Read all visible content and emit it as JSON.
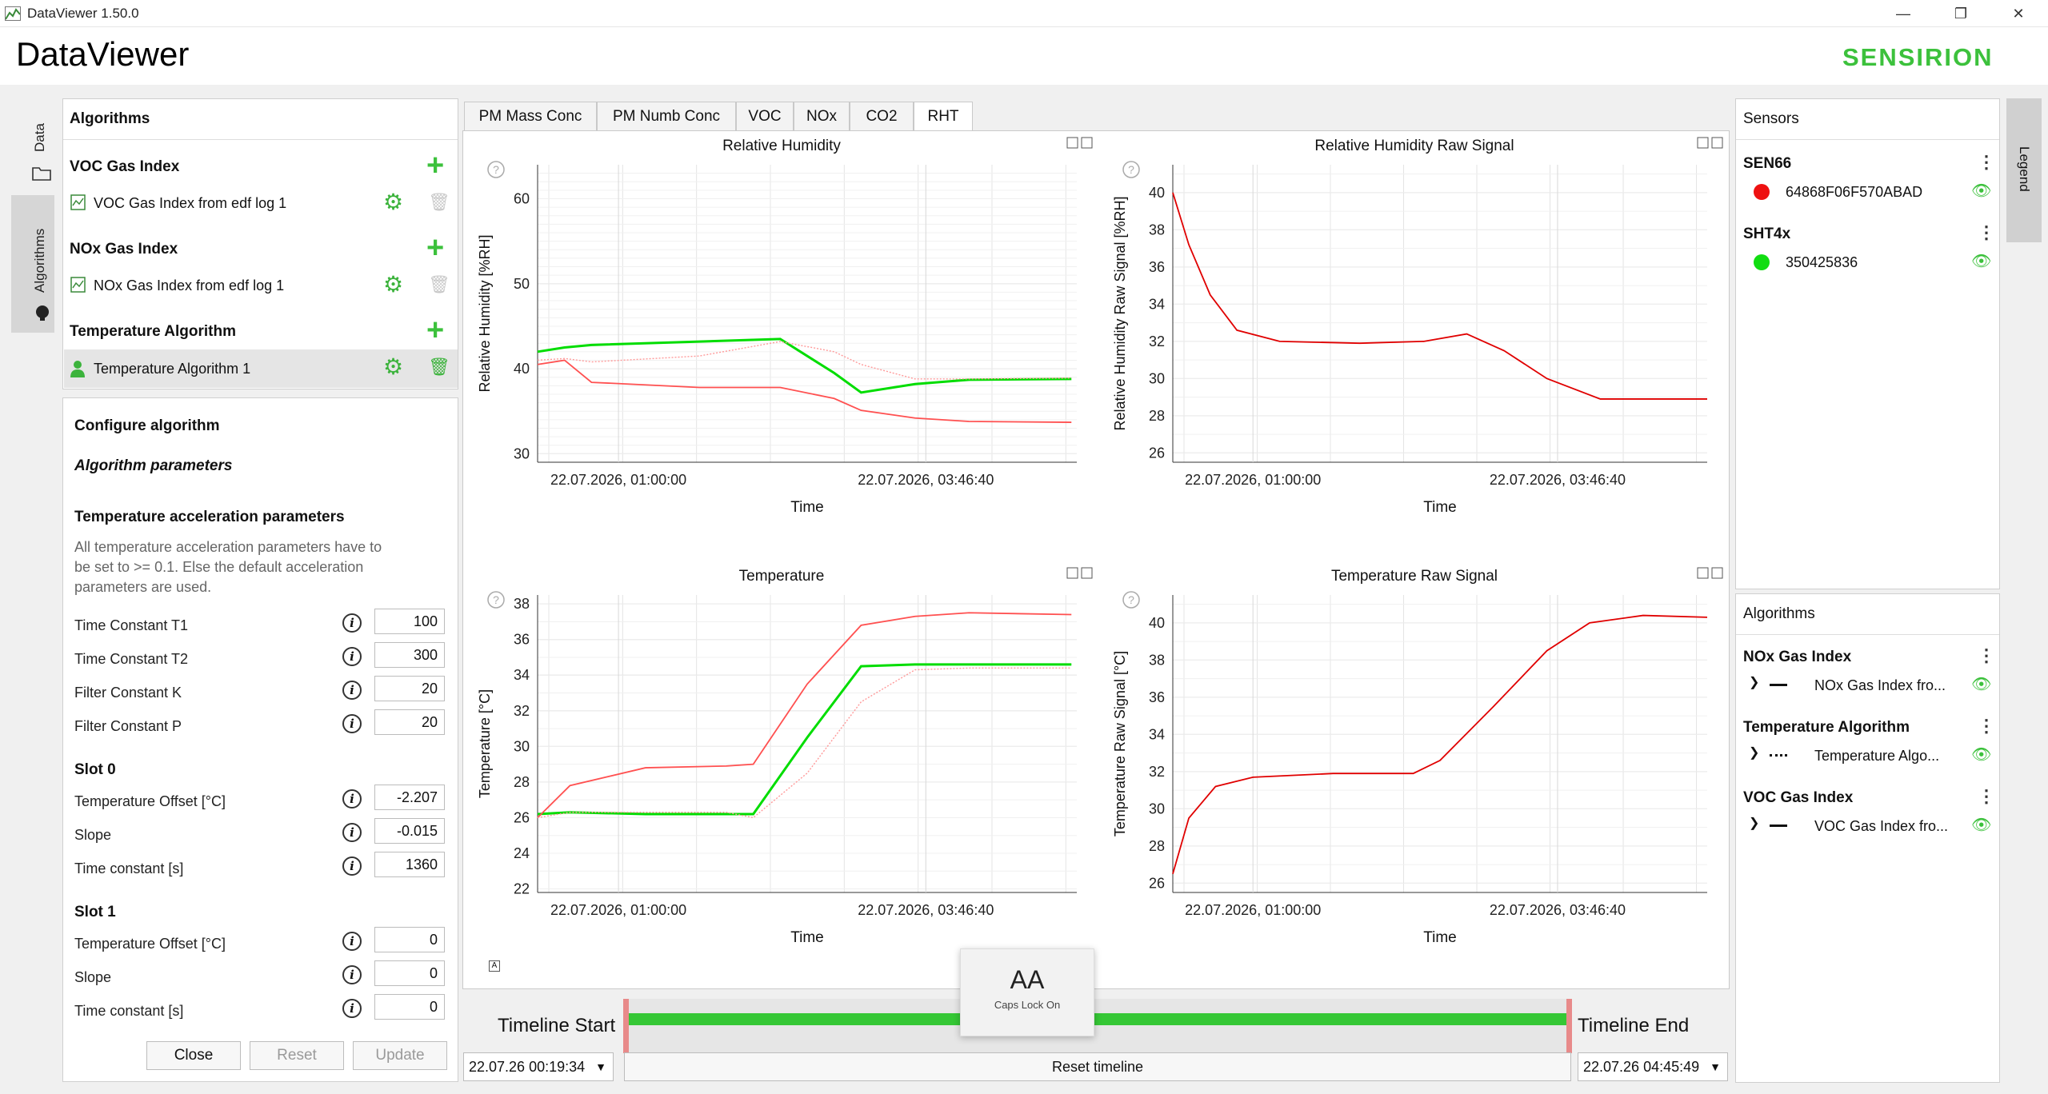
{
  "window": {
    "title": "DataViewer 1.50.0",
    "app_title": "DataViewer",
    "brand": "SENSIRION"
  },
  "rail": {
    "data_tab": "Data",
    "algorithms_tab": "Algorithms",
    "legend_tab": "Legend"
  },
  "algorithms_panel": {
    "header": "Algorithms",
    "groups": [
      {
        "name": "VOC Gas Index",
        "item": "VOC Gas Index from edf log 1"
      },
      {
        "name": "NOx Gas Index",
        "item": "NOx Gas Index from edf log 1"
      },
      {
        "name": "Temperature Algorithm",
        "item": "Temperature Algorithm 1"
      }
    ]
  },
  "configure": {
    "title": "Configure algorithm",
    "subtitle": "Algorithm parameters",
    "accel_header": "Temperature acceleration parameters",
    "accel_note_1": "All temperature acceleration parameters have to",
    "accel_note_2": "be set to >= 0.1. Else the default acceleration",
    "accel_note_3": "parameters are used.",
    "params": [
      {
        "label": "Time Constant T1",
        "value": "100"
      },
      {
        "label": "Time Constant T2",
        "value": "300"
      },
      {
        "label": "Filter Constant K",
        "value": "20"
      },
      {
        "label": "Filter Constant P",
        "value": "20"
      }
    ],
    "slot0_header": "Slot 0",
    "slot0": [
      {
        "label": "Temperature Offset [°C]",
        "value": "-2.207"
      },
      {
        "label": "Slope",
        "value": "-0.015"
      },
      {
        "label": "Time constant [s]",
        "value": "1360"
      }
    ],
    "slot1_header": "Slot 1",
    "slot1": [
      {
        "label": "Temperature Offset [°C]",
        "value": "0"
      },
      {
        "label": "Slope",
        "value": "0"
      },
      {
        "label": "Time constant [s]",
        "value": "0"
      }
    ],
    "buttons": {
      "close": "Close",
      "reset": "Reset",
      "update": "Update"
    }
  },
  "tabs": [
    "PM Mass Conc",
    "PM Numb Conc",
    "VOC",
    "NOx",
    "CO2",
    "RHT"
  ],
  "active_tab": "RHT",
  "time_ticks": [
    "22.07.2026, 01:00:00",
    "22.07.2026, 03:46:40"
  ],
  "time_label": "Time",
  "chart_data": [
    {
      "type": "line",
      "title": "Relative Humidity",
      "xlabel": "Time",
      "ylabel": "Relative Humidity [%RH]",
      "yticks": [
        "30",
        "40",
        "50",
        "60"
      ],
      "ylim": [
        29,
        64
      ],
      "x": [
        0,
        0.05,
        0.1,
        0.3,
        0.45,
        0.55,
        0.6,
        0.7,
        0.8,
        0.99
      ],
      "series": [
        {
          "color": "#00dd00",
          "values": [
            42,
            42.5,
            42.8,
            43.2,
            43.5,
            39.5,
            37.2,
            38.2,
            38.7,
            38.8
          ]
        },
        {
          "color": "#ff5050",
          "values": [
            40.5,
            41,
            38.4,
            37.8,
            37.8,
            36.5,
            35.1,
            34.2,
            33.8,
            33.7
          ]
        },
        {
          "color": "#ff9a9a",
          "dashed": true,
          "values": [
            41,
            41.2,
            40.8,
            41.5,
            43.2,
            42.0,
            40.5,
            38.8,
            38.8,
            38.9
          ]
        }
      ]
    },
    {
      "type": "line",
      "title": "Relative Humidity Raw Signal",
      "xlabel": "Time",
      "ylabel": "Relative Humidity Raw Signal [%RH]",
      "yticks": [
        "26",
        "28",
        "30",
        "32",
        "34",
        "36",
        "38",
        "40"
      ],
      "ylim": [
        25.5,
        41.5
      ],
      "x": [
        0,
        0.03,
        0.07,
        0.12,
        0.2,
        0.35,
        0.47,
        0.55,
        0.62,
        0.7,
        0.8,
        1.0
      ],
      "series": [
        {
          "color": "#e00000",
          "values": [
            40,
            37.2,
            34.5,
            32.6,
            32.0,
            31.9,
            32.0,
            32.4,
            31.5,
            30.0,
            28.9,
            28.9
          ]
        }
      ]
    },
    {
      "type": "line",
      "title": "Temperature",
      "xlabel": "Time",
      "ylabel": "Temperature [°C]",
      "yticks": [
        "22",
        "24",
        "26",
        "28",
        "30",
        "32",
        "34",
        "36",
        "38"
      ],
      "ylim": [
        21.8,
        38.5
      ],
      "x": [
        0,
        0.06,
        0.2,
        0.35,
        0.4,
        0.5,
        0.6,
        0.7,
        0.8,
        0.99
      ],
      "series": [
        {
          "color": "#00dd00",
          "values": [
            26.2,
            26.3,
            26.2,
            26.2,
            26.2,
            30.5,
            34.5,
            34.6,
            34.6,
            34.6
          ]
        },
        {
          "color": "#ff5050",
          "values": [
            26.0,
            27.8,
            28.8,
            28.9,
            29.0,
            33.5,
            36.8,
            37.3,
            37.5,
            37.4
          ]
        },
        {
          "color": "#ff9a9a",
          "dashed": true,
          "values": [
            26.0,
            26.3,
            26.3,
            26.3,
            26.0,
            28.5,
            32.5,
            34.3,
            34.4,
            34.4
          ]
        }
      ]
    },
    {
      "type": "line",
      "title": "Temperature Raw Signal",
      "xlabel": "Time",
      "ylabel": "Temperature Raw Signal [°C]",
      "yticks": [
        "26",
        "28",
        "30",
        "32",
        "34",
        "36",
        "38",
        "40"
      ],
      "ylim": [
        25.5,
        41.5
      ],
      "x": [
        0,
        0.03,
        0.08,
        0.15,
        0.3,
        0.45,
        0.5,
        0.6,
        0.7,
        0.78,
        0.88,
        1.0
      ],
      "series": [
        {
          "color": "#e00000",
          "values": [
            26.5,
            29.5,
            31.2,
            31.7,
            31.9,
            31.9,
            32.6,
            35.5,
            38.5,
            40.0,
            40.4,
            40.3
          ]
        }
      ]
    }
  ],
  "timeline": {
    "start_label": "Timeline Start",
    "end_label": "Timeline End",
    "start_value": "22.07.26 00:19:34",
    "end_value": "22.07.26 04:45:49",
    "reset": "Reset timeline"
  },
  "caps": {
    "glyph": "AA",
    "text": "Caps Lock On"
  },
  "sensors": {
    "header": "Sensors",
    "groups": [
      {
        "name": "SEN66",
        "id": "64868F06F570ABAD",
        "color": "#ee1111"
      },
      {
        "name": "SHT4x",
        "id": "350425836",
        "color": "#11dd11"
      }
    ]
  },
  "legend_algorithms": {
    "header": "Algorithms",
    "groups": [
      {
        "name": "NOx Gas Index",
        "item": "NOx Gas Index fro..."
      },
      {
        "name": "Temperature Algorithm",
        "item": "Temperature Algo..."
      },
      {
        "name": "VOC Gas Index",
        "item": "VOC Gas Index fro..."
      }
    ]
  }
}
